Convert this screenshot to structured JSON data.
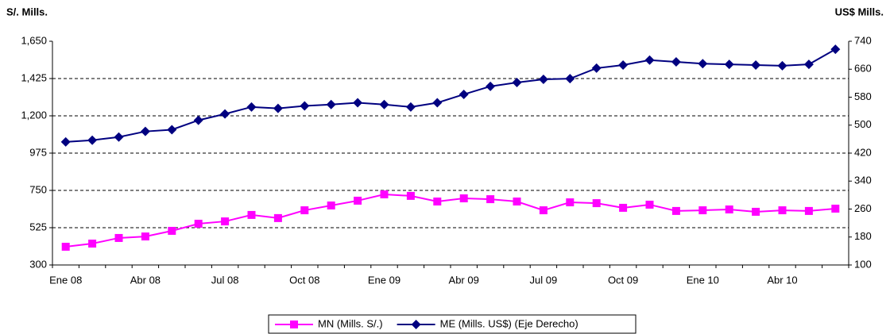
{
  "chart_data": {
    "type": "line",
    "ylabel": "S/. Mills.",
    "y2label": "US$ Mills.",
    "categories": [
      "Ene 08",
      null,
      null,
      "Abr 08",
      null,
      null,
      "Jul 08",
      null,
      null,
      "Oct 08",
      null,
      null,
      "Ene 09",
      null,
      null,
      "Abr 09",
      null,
      null,
      "Jul 09",
      null,
      null,
      "Oct 09",
      null,
      null,
      "Ene 10",
      null,
      null,
      "Abr 10",
      null,
      null
    ],
    "series": [
      {
        "name": "MN (Mills. S/.)",
        "color": "#ff00ff",
        "marker": "square",
        "values": [
          410,
          429,
          463,
          472,
          506,
          549,
          563,
          602,
          583,
          630,
          659,
          688,
          726,
          717,
          683,
          702,
          697,
          683,
          630,
          678,
          673,
          645,
          664,
          626,
          630,
          635,
          621,
          630,
          626,
          640
        ]
      },
      {
        "name": "ME (Mills. US$) (Eje Derecho)",
        "color": "#000080",
        "marker": "diamond",
        "axis": "y2",
        "values": [
          452,
          457,
          466,
          482,
          487,
          514,
          532,
          552,
          548,
          555,
          559,
          564,
          559,
          552,
          564,
          588,
          611,
          622,
          631,
          633,
          663,
          672,
          686,
          681,
          676,
          674,
          672,
          670,
          674,
          717
        ]
      }
    ],
    "ylim": [
      300,
      1650
    ],
    "yticks": [
      300,
      {
        "value": 525,
        "label": "525"
      },
      {
        "value": 750,
        "label": "750"
      },
      {
        "value": 975,
        "label": "975"
      },
      {
        "value": 1200,
        "label": "1,200"
      },
      {
        "value": 1425,
        "label": "1,425"
      },
      {
        "value": 1650,
        "label": "1,650"
      }
    ],
    "y2lim": [
      100,
      740
    ],
    "y2ticks": [
      100,
      180,
      260,
      340,
      420,
      500,
      580,
      660,
      740
    ],
    "grid": true,
    "legend": "bottom"
  }
}
